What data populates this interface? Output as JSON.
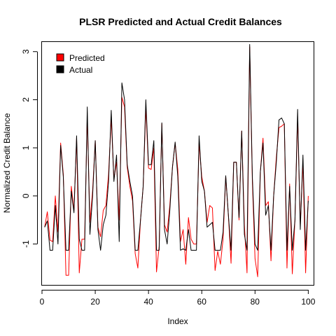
{
  "chart_data": {
    "type": "line",
    "title": "PLSR Predicted and Actual Credit Balances",
    "xlabel": "Index",
    "ylabel": "Normalized Credit Balance",
    "xlim": [
      0,
      102
    ],
    "ylim": [
      -1.85,
      3.2
    ],
    "x_ticks": [
      0,
      20,
      40,
      60,
      80,
      100
    ],
    "y_ticks": [
      -1,
      0,
      1,
      2,
      3
    ],
    "legend_position": "top-left",
    "series": [
      {
        "name": "Predicted",
        "color": "#ff0000",
        "values": [
          -0.65,
          -0.33,
          -0.92,
          -0.95,
          0.0,
          -0.75,
          1.1,
          0.45,
          -1.65,
          -1.65,
          0.2,
          -0.3,
          1.2,
          -1.6,
          -0.9,
          -0.9,
          1.65,
          -0.55,
          0.1,
          1.15,
          -0.65,
          -0.85,
          -0.3,
          -0.2,
          0.45,
          1.62,
          0.35,
          0.7,
          -0.5,
          2.05,
          1.85,
          0.6,
          0.2,
          -0.1,
          -1.2,
          -1.5,
          -0.5,
          0.2,
          1.85,
          0.58,
          0.55,
          1.0,
          -1.58,
          -1.05,
          1.5,
          -0.6,
          -0.75,
          -0.2,
          0.6,
          1.1,
          0.55,
          -0.95,
          -0.7,
          -1.42,
          -0.45,
          -0.9,
          -1.0,
          -1.0,
          1.1,
          0.4,
          0.1,
          -0.55,
          -0.2,
          -0.25,
          -1.55,
          -1.15,
          -1.42,
          -0.9,
          0.4,
          -0.4,
          -1.4,
          0.7,
          0.7,
          -0.5,
          1.35,
          -0.6,
          -1.6,
          3.1,
          0.3,
          -1.3,
          -1.68,
          0.5,
          1.2,
          -0.2,
          -0.12,
          -1.35,
          0.0,
          0.8,
          1.42,
          1.45,
          1.5,
          -1.5,
          0.25,
          -1.62,
          -0.5,
          1.65,
          -0.6,
          0.7,
          -1.6,
          0.0
        ]
      },
      {
        "name": "Actual",
        "color": "#000000",
        "values": [
          -0.65,
          -0.52,
          -1.13,
          -1.13,
          -0.2,
          -1.0,
          1.05,
          0.4,
          -1.13,
          -1.13,
          0.1,
          -0.35,
          1.25,
          -0.9,
          -1.13,
          -1.13,
          1.85,
          -0.8,
          0.0,
          1.15,
          -0.7,
          -1.13,
          -0.6,
          -0.4,
          0.3,
          1.78,
          0.3,
          0.85,
          -0.95,
          2.35,
          2.0,
          0.65,
          0.3,
          0.0,
          -1.13,
          -1.13,
          -0.5,
          0.2,
          2.0,
          0.65,
          0.65,
          1.15,
          -1.13,
          -1.13,
          1.52,
          -0.7,
          -1.0,
          -0.3,
          0.6,
          1.12,
          0.4,
          -1.13,
          -1.1,
          -1.13,
          -0.7,
          -1.13,
          -1.13,
          -1.13,
          1.25,
          0.3,
          0.1,
          -0.65,
          -0.6,
          -0.55,
          -1.13,
          -1.13,
          -1.13,
          -0.75,
          0.42,
          -0.4,
          -1.13,
          0.7,
          0.7,
          -0.45,
          1.35,
          -0.8,
          -1.13,
          3.15,
          0.4,
          -1.0,
          -1.13,
          0.5,
          1.1,
          -0.4,
          -0.2,
          -1.13,
          0.0,
          0.7,
          1.58,
          1.62,
          1.5,
          -1.13,
          0.2,
          -1.13,
          -0.5,
          1.8,
          -0.7,
          0.85,
          -1.13,
          -0.1
        ]
      }
    ]
  }
}
